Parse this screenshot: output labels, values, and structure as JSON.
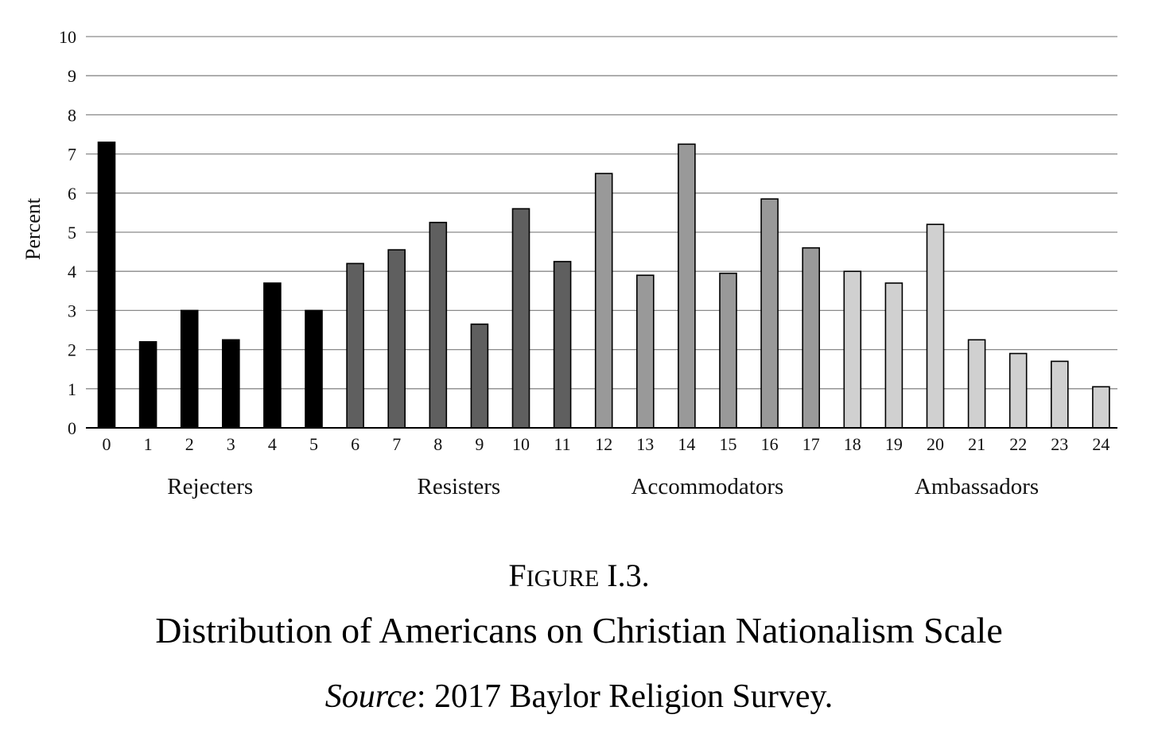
{
  "caption": {
    "figure_number_first": "F",
    "figure_number_smallcaps": "IGURE",
    "figure_number_rest": " I.3.",
    "title": "Distribution of Americans on Christian Nationalism Scale",
    "source_label": "Source",
    "source_text": ": 2017 Baylor Religion Survey."
  },
  "chart_data": {
    "type": "bar",
    "title": "",
    "xlabel": "",
    "ylabel": "Percent",
    "ylim": [
      0,
      10
    ],
    "yticks": [
      0,
      1,
      2,
      3,
      4,
      5,
      6,
      7,
      8,
      9,
      10
    ],
    "grid": true,
    "categories": [
      "0",
      "1",
      "2",
      "3",
      "4",
      "5",
      "6",
      "7",
      "8",
      "9",
      "10",
      "11",
      "12",
      "13",
      "14",
      "15",
      "16",
      "17",
      "18",
      "19",
      "20",
      "21",
      "22",
      "23",
      "24"
    ],
    "values": [
      7.3,
      2.2,
      3.0,
      2.25,
      3.7,
      3.0,
      4.2,
      4.55,
      5.25,
      2.65,
      5.6,
      4.25,
      6.5,
      3.9,
      7.25,
      3.95,
      5.85,
      4.6,
      4.0,
      3.7,
      5.2,
      2.25,
      1.9,
      1.7,
      1.05
    ],
    "groups": [
      {
        "name": "Rejecters",
        "from": 0,
        "to": 5,
        "color": "#000000"
      },
      {
        "name": "Resisters",
        "from": 6,
        "to": 11,
        "color": "#5f5f5f"
      },
      {
        "name": "Accommodators",
        "from": 12,
        "to": 17,
        "color": "#999999"
      },
      {
        "name": "Ambassadors",
        "from": 18,
        "to": 24,
        "color": "#d0d0d0"
      }
    ]
  }
}
